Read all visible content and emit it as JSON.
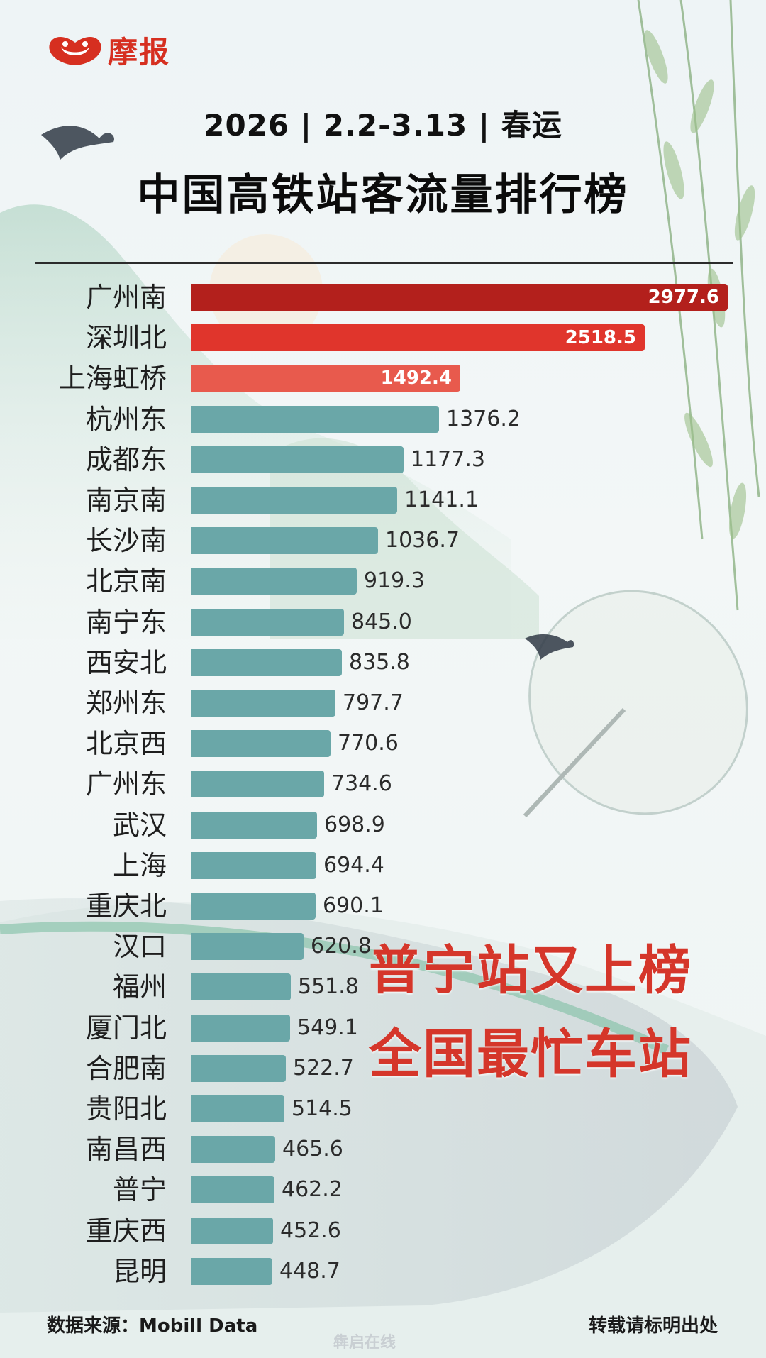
{
  "brand": {
    "name": "摩报"
  },
  "header": {
    "subtitle": "2026 | 2.2-3.13 | 春运",
    "title": "中国高铁站客流量排行榜"
  },
  "callout": {
    "line1": "普宁站又上榜",
    "line2": "全国最忙车站"
  },
  "footer": {
    "source": "数据来源：Mobill Data",
    "note": "转载请标明出处",
    "watermark": "犇启在线"
  },
  "colors": {
    "top1": "#b3201c",
    "top2": "#e0352c",
    "top3": "#e85a4d",
    "rest": "#6aa7a8",
    "accent": "#d5362a"
  },
  "chart_data": {
    "type": "bar",
    "orientation": "horizontal",
    "categories": [
      "广州南",
      "深圳北",
      "上海虹桥",
      "杭州东",
      "成都东",
      "南京南",
      "长沙南",
      "北京南",
      "南宁东",
      "西安北",
      "郑州东",
      "北京西",
      "广州东",
      "武汉",
      "上海",
      "重庆北",
      "汉口",
      "福州",
      "厦门北",
      "合肥南",
      "贵阳北",
      "南昌西",
      "普宁",
      "重庆西",
      "昆明"
    ],
    "values": [
      2977.6,
      2518.5,
      1492.4,
      1376.2,
      1177.3,
      1141.1,
      1036.7,
      919.3,
      845.0,
      835.8,
      797.7,
      770.6,
      734.6,
      698.9,
      694.4,
      690.1,
      620.8,
      551.8,
      549.1,
      522.7,
      514.5,
      465.6,
      462.2,
      452.6,
      448.7
    ],
    "value_labels": [
      "2977.6",
      "2518.5",
      "1492.4",
      "1376.2",
      "1177.3",
      "1141.1",
      "1036.7",
      "919.3",
      "845.0",
      "835.8",
      "797.7",
      "770.6",
      "734.6",
      "698.9",
      "694.4",
      "690.1",
      "620.8",
      "551.8",
      "549.1",
      "522.7",
      "514.5",
      "465.6",
      "462.2",
      "452.6",
      "448.7"
    ],
    "title": "中国高铁站客流量排行榜",
    "xlabel": "",
    "ylabel": "",
    "xlim": [
      0,
      2977.6
    ],
    "grid": false,
    "legend": "none"
  }
}
